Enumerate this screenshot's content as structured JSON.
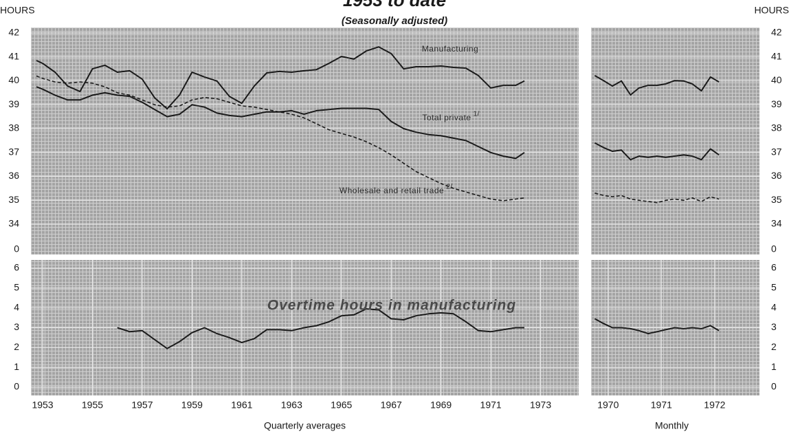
{
  "header": {
    "title": "1953 to date",
    "subtitle": "(Seasonally adjusted)",
    "y_label_left": "HOURS",
    "y_label_right": "HOURS"
  },
  "chart_data": [
    {
      "type": "line",
      "xlim": [
        1952.53,
        1974.53
      ],
      "ylim": [
        34,
        42
      ],
      "yticks": [
        34,
        35,
        36,
        37,
        38,
        39,
        40,
        41,
        42
      ],
      "y_break_label": "0",
      "grid": true,
      "series": [
        {
          "name": "Manufacturing",
          "color": "#1a1a1a",
          "style": "solid",
          "x": [
            1952.75,
            1953,
            1953.5,
            1954,
            1954.5,
            1955,
            1955.5,
            1956,
            1956.5,
            1957,
            1957.5,
            1958,
            1958.5,
            1959,
            1959.5,
            1960,
            1960.5,
            1961,
            1961.5,
            1962,
            1962.5,
            1963,
            1963.5,
            1964,
            1964.5,
            1965,
            1965.5,
            1966,
            1966.5,
            1967,
            1967.5,
            1968,
            1968.5,
            1969,
            1969.5,
            1970,
            1970.5,
            1971,
            1971.5,
            1972,
            1972.35
          ],
          "values": [
            40.85,
            40.73,
            40.36,
            39.78,
            39.55,
            40.5,
            40.65,
            40.36,
            40.42,
            40.07,
            39.29,
            38.83,
            39.41,
            40.36,
            40.16,
            39.99,
            39.35,
            39.06,
            39.78,
            40.33,
            40.39,
            40.36,
            40.42,
            40.47,
            40.73,
            41.02,
            40.91,
            41.25,
            41.42,
            41.14,
            40.5,
            40.59,
            40.59,
            40.62,
            40.56,
            40.53,
            40.22,
            39.7,
            39.81,
            39.81,
            39.99
          ]
        },
        {
          "name": "Total private",
          "footnote": "1/",
          "color": "#1a1a1a",
          "style": "solid",
          "x": [
            1952.75,
            1953,
            1953.5,
            1954,
            1954.5,
            1955,
            1955.5,
            1956,
            1956.5,
            1957,
            1957.5,
            1958,
            1958.5,
            1959,
            1959.5,
            1960,
            1960.5,
            1961,
            1961.5,
            1962,
            1962.5,
            1963,
            1963.5,
            1964,
            1964.5,
            1965,
            1965.5,
            1966,
            1966.5,
            1967,
            1967.5,
            1968,
            1968.5,
            1969,
            1969.5,
            1970,
            1970.5,
            1971,
            1971.5,
            1972,
            1972.35
          ],
          "values": [
            39.75,
            39.65,
            39.4,
            39.2,
            39.2,
            39.4,
            39.5,
            39.4,
            39.35,
            39.1,
            38.8,
            38.5,
            38.6,
            39.0,
            38.9,
            38.65,
            38.55,
            38.5,
            38.6,
            38.7,
            38.7,
            38.75,
            38.6,
            38.75,
            38.8,
            38.85,
            38.85,
            38.85,
            38.8,
            38.3,
            38.0,
            37.85,
            37.75,
            37.7,
            37.6,
            37.5,
            37.25,
            37.0,
            36.85,
            36.75,
            37.0
          ]
        },
        {
          "name": "Wholesale and retail trade",
          "footnote": "2/",
          "color": "#1a1a1a",
          "style": "dashed",
          "x": [
            1952.75,
            1953,
            1953.5,
            1954,
            1954.5,
            1955,
            1955.5,
            1956,
            1956.5,
            1957,
            1957.5,
            1958,
            1958.5,
            1959,
            1959.5,
            1960,
            1960.5,
            1961,
            1961.5,
            1962,
            1962.5,
            1963,
            1963.5,
            1964,
            1964.5,
            1965,
            1965.5,
            1966,
            1966.5,
            1967,
            1967.5,
            1968,
            1968.5,
            1969,
            1969.5,
            1970,
            1970.5,
            1971,
            1971.5,
            1972,
            1972.35
          ],
          "values": [
            40.2,
            40.1,
            39.95,
            39.9,
            39.95,
            39.9,
            39.75,
            39.5,
            39.4,
            39.2,
            39.0,
            38.9,
            38.95,
            39.2,
            39.3,
            39.25,
            39.1,
            38.95,
            38.9,
            38.8,
            38.7,
            38.6,
            38.45,
            38.2,
            37.95,
            37.8,
            37.65,
            37.45,
            37.2,
            36.9,
            36.55,
            36.2,
            35.95,
            35.7,
            35.5,
            35.35,
            35.2,
            35.05,
            34.98,
            35.05,
            35.1
          ]
        }
      ]
    },
    {
      "type": "line",
      "xlim": [
        1969.68,
        1972.84
      ],
      "ylim": [
        34,
        42
      ],
      "yticks": [
        34,
        35,
        36,
        37,
        38,
        39,
        40,
        41,
        42
      ],
      "y_break_label": "0",
      "grid": true,
      "series": [
        {
          "color": "#1a1a1a",
          "style": "solid",
          "x": [
            1969.75,
            1969.92,
            1970.08,
            1970.25,
            1970.42,
            1970.58,
            1970.75,
            1970.92,
            1971.08,
            1971.25,
            1971.42,
            1971.58,
            1971.75,
            1971.92,
            1972.08
          ],
          "values": [
            40.22,
            40.0,
            39.78,
            39.99,
            39.41,
            39.7,
            39.81,
            39.81,
            39.87,
            40.01,
            39.99,
            39.87,
            39.58,
            40.16,
            39.95
          ]
        },
        {
          "color": "#1a1a1a",
          "style": "solid",
          "x": [
            1969.75,
            1969.92,
            1970.08,
            1970.25,
            1970.42,
            1970.58,
            1970.75,
            1970.92,
            1971.08,
            1971.25,
            1971.42,
            1971.58,
            1971.75,
            1971.92,
            1972.08
          ],
          "values": [
            37.4,
            37.2,
            37.05,
            37.1,
            36.7,
            36.85,
            36.8,
            36.85,
            36.8,
            36.85,
            36.9,
            36.85,
            36.7,
            37.15,
            36.9
          ]
        },
        {
          "color": "#1a1a1a",
          "style": "dashed",
          "x": [
            1969.75,
            1969.92,
            1970.08,
            1970.25,
            1970.42,
            1970.58,
            1970.75,
            1970.92,
            1971.08,
            1971.25,
            1971.42,
            1971.58,
            1971.75,
            1971.92,
            1972.08
          ],
          "values": [
            35.3,
            35.2,
            35.15,
            35.2,
            35.05,
            35.0,
            34.95,
            34.9,
            35.0,
            35.05,
            35.0,
            35.1,
            34.95,
            35.15,
            35.05
          ]
        }
      ]
    },
    {
      "type": "line",
      "xlim": [
        1952.53,
        1974.53
      ],
      "xticks": [
        1953,
        1955,
        1957,
        1959,
        1961,
        1963,
        1965,
        1967,
        1969,
        1971,
        1973
      ],
      "ylim": [
        0,
        6
      ],
      "yticks": [
        0,
        1,
        2,
        3,
        4,
        5,
        6
      ],
      "grid": true,
      "x_label": "Quarterly averages",
      "annotation": "Overtime hours in manufacturing",
      "series": [
        {
          "color": "#1a1a1a",
          "style": "solid",
          "x": [
            1956,
            1956.5,
            1957,
            1957.5,
            1958,
            1958.5,
            1959,
            1959.5,
            1960,
            1960.5,
            1961,
            1961.5,
            1962,
            1962.5,
            1963,
            1963.5,
            1964,
            1964.5,
            1965,
            1965.5,
            1966,
            1966.5,
            1967,
            1967.5,
            1968,
            1968.5,
            1969,
            1969.5,
            1970,
            1970.5,
            1971,
            1971.5,
            1972,
            1972.35
          ],
          "values": [
            3.0,
            2.8,
            2.85,
            2.4,
            1.95,
            2.3,
            2.75,
            3.0,
            2.7,
            2.5,
            2.25,
            2.45,
            2.9,
            2.9,
            2.85,
            3.0,
            3.1,
            3.3,
            3.6,
            3.65,
            3.95,
            3.9,
            3.45,
            3.4,
            3.6,
            3.7,
            3.75,
            3.7,
            3.3,
            2.85,
            2.8,
            2.9,
            3.0,
            3.0
          ]
        }
      ]
    },
    {
      "type": "line",
      "xlim": [
        1969.68,
        1972.84
      ],
      "xticks": [
        1970,
        1971,
        1972
      ],
      "ylim": [
        0,
        6
      ],
      "yticks": [
        0,
        1,
        2,
        3,
        4,
        5,
        6
      ],
      "grid": true,
      "x_label": "Monthly",
      "series": [
        {
          "color": "#1a1a1a",
          "style": "solid",
          "x": [
            1969.75,
            1969.92,
            1970.08,
            1970.25,
            1970.42,
            1970.58,
            1970.75,
            1970.92,
            1971.08,
            1971.25,
            1971.42,
            1971.58,
            1971.75,
            1971.92,
            1972.08
          ],
          "values": [
            3.45,
            3.2,
            3.0,
            3.0,
            2.95,
            2.85,
            2.7,
            2.8,
            2.9,
            3.0,
            2.95,
            3.0,
            2.95,
            3.1,
            2.85
          ]
        }
      ]
    }
  ]
}
